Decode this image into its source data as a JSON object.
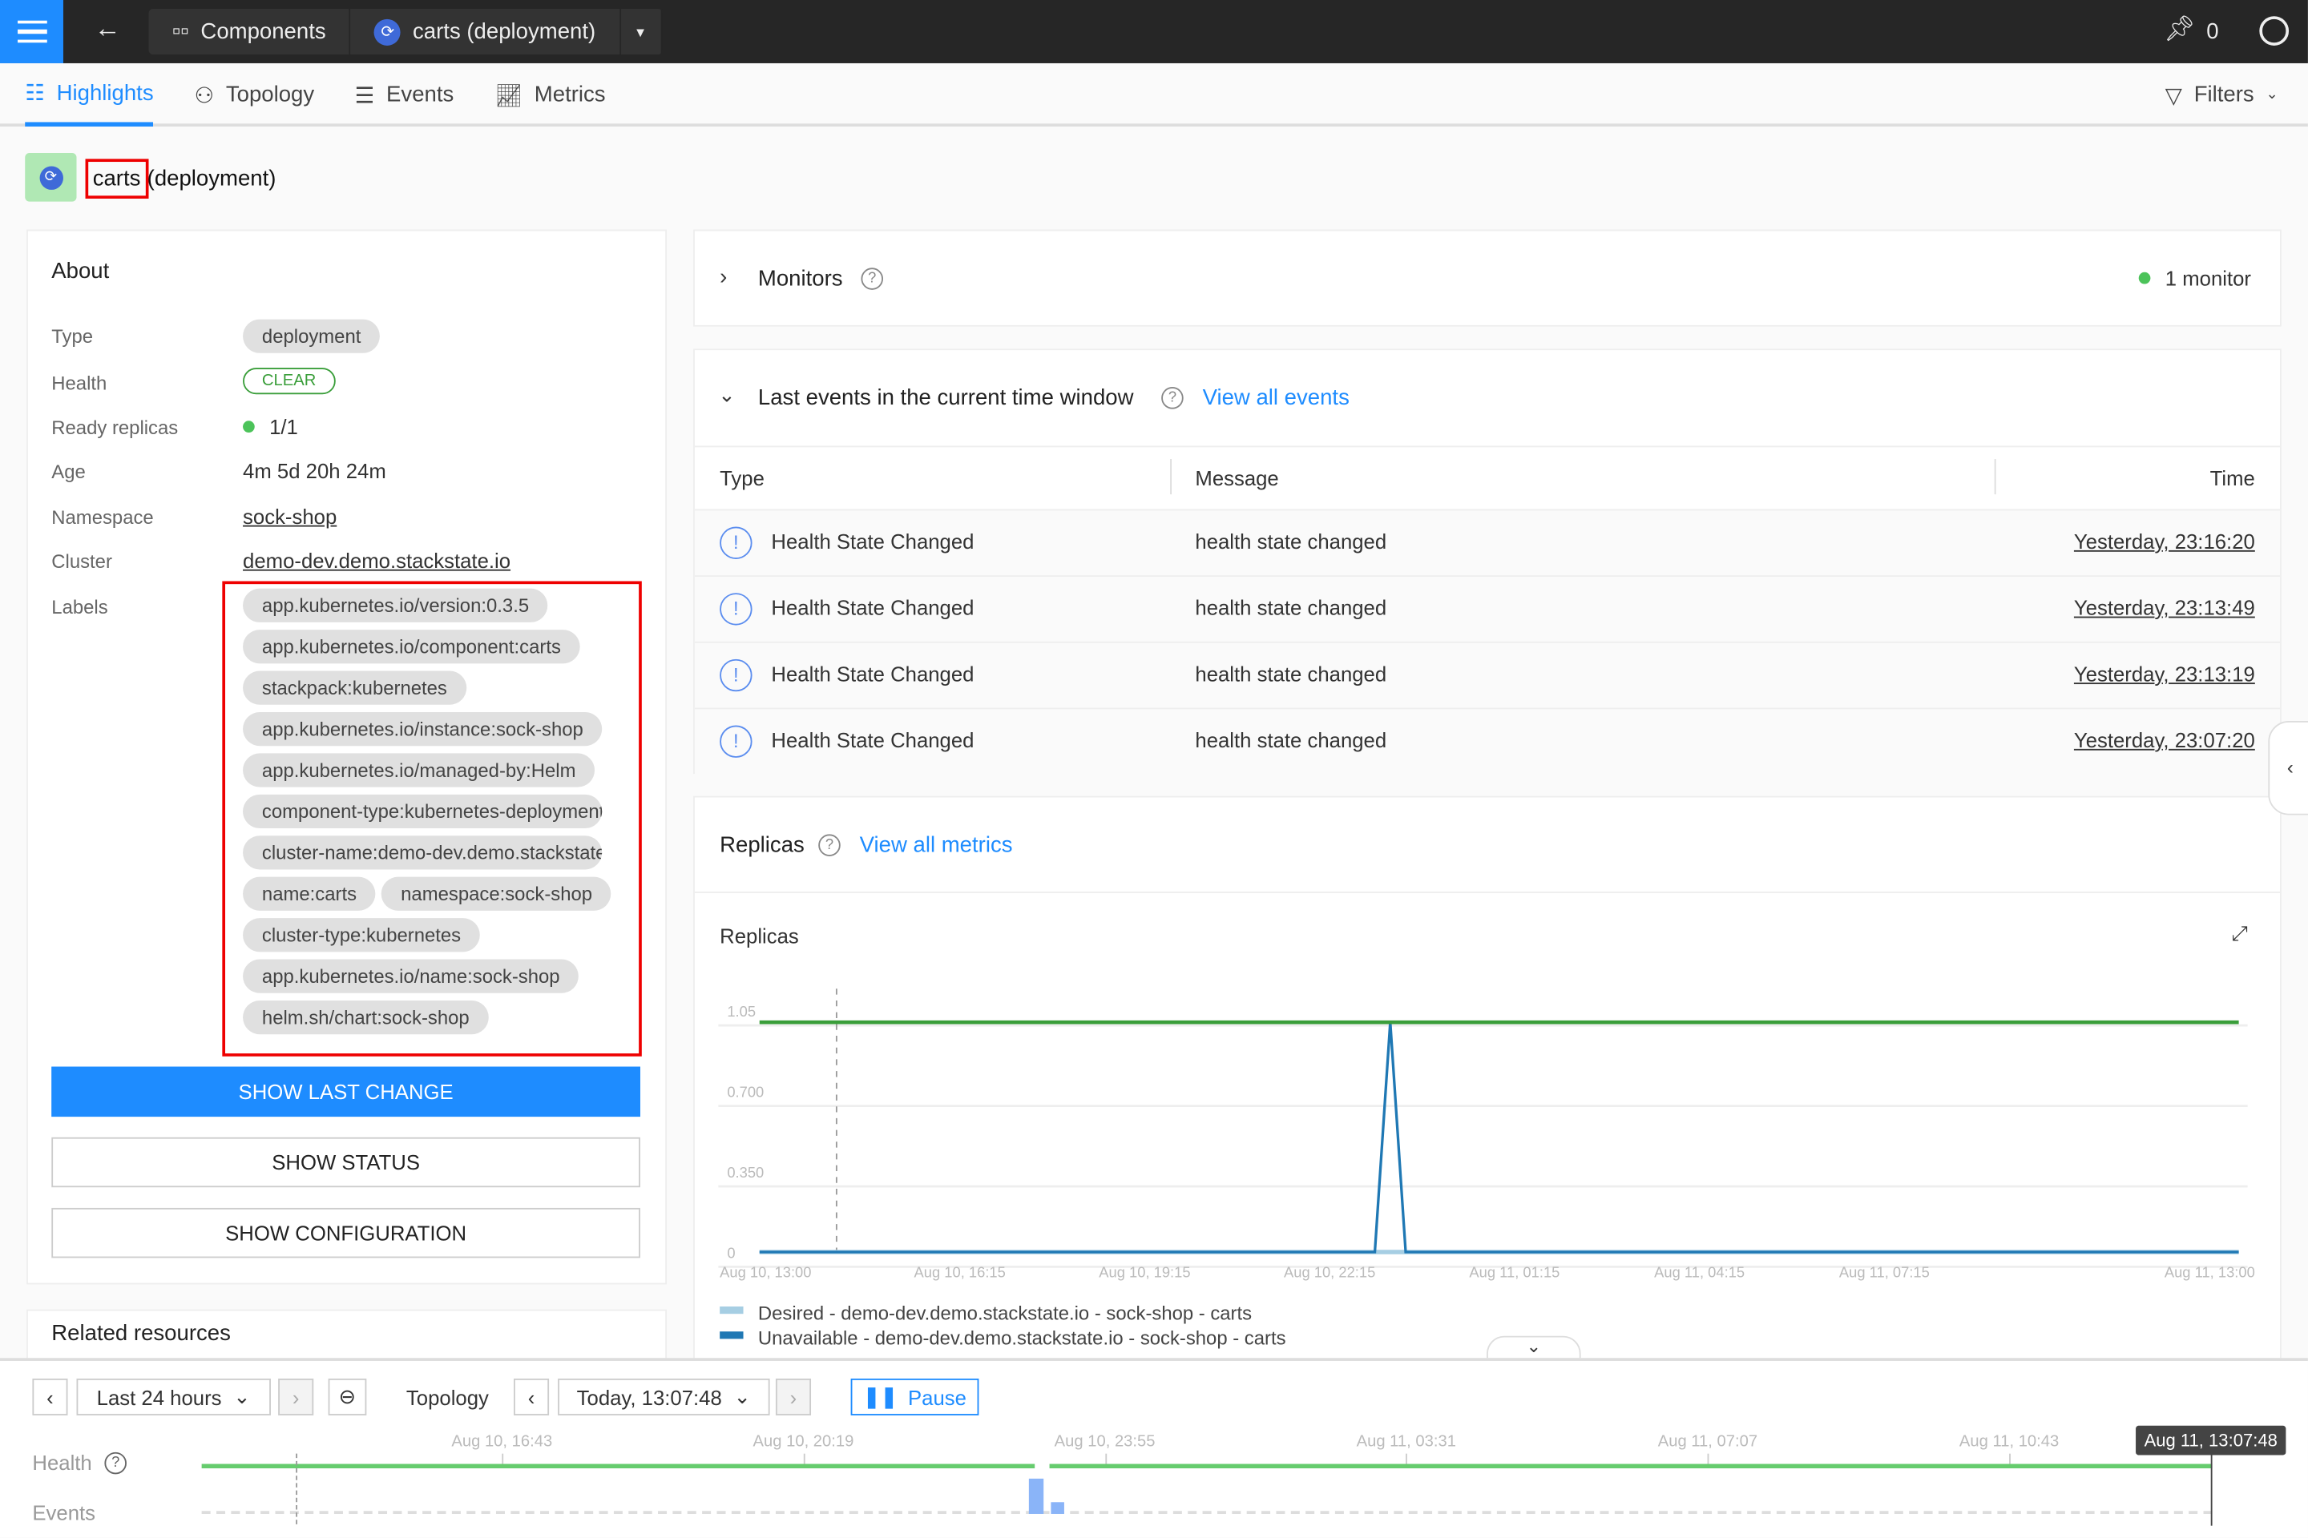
{
  "topbar": {
    "breadcrumb": [
      "Components",
      "carts (deployment)"
    ],
    "pin_count": "0"
  },
  "tabs": [
    {
      "label": "Highlights",
      "active": true
    },
    {
      "label": "Topology"
    },
    {
      "label": "Events"
    },
    {
      "label": "Metrics"
    }
  ],
  "filters_label": "Filters",
  "title": {
    "name": "carts",
    "kind": "(deployment)"
  },
  "about": {
    "heading": "About",
    "rows": [
      {
        "label": "Type",
        "value": "deployment"
      },
      {
        "label": "Health",
        "value": "CLEAR"
      },
      {
        "label": "Ready replicas",
        "value": "1/1"
      },
      {
        "label": "Age",
        "value": "4m 5d 20h 24m"
      },
      {
        "label": "Namespace",
        "value": "sock-shop"
      },
      {
        "label": "Cluster",
        "value": "demo-dev.demo.stackstate.io"
      },
      {
        "label": "Labels"
      }
    ],
    "labels": [
      "app.kubernetes.io/version:0.3.5",
      "app.kubernetes.io/component:carts",
      "stackpack:kubernetes",
      "app.kubernetes.io/instance:sock-shop",
      "app.kubernetes.io/managed-by:Helm",
      "component-type:kubernetes-deployment",
      "cluster-name:demo-dev.demo.stackstate.io",
      "name:carts",
      "namespace:sock-shop",
      "cluster-type:kubernetes",
      "app.kubernetes.io/name:sock-shop",
      "helm.sh/chart:sock-shop"
    ],
    "buttons": [
      "SHOW LAST CHANGE",
      "SHOW STATUS",
      "SHOW CONFIGURATION"
    ]
  },
  "related_heading": "Related resources",
  "monitors": {
    "title": "Monitors",
    "count": "1 monitor"
  },
  "events": {
    "title": "Last events in the current time window",
    "link": "View all events",
    "columns": [
      "Type",
      "Message",
      "Time"
    ],
    "rows": [
      {
        "type": "Health State Changed",
        "message": "health state changed",
        "time": "Yesterday, 23:16:20"
      },
      {
        "type": "Health State Changed",
        "message": "health state changed",
        "time": "Yesterday, 23:13:49"
      },
      {
        "type": "Health State Changed",
        "message": "health state changed",
        "time": "Yesterday, 23:13:19"
      },
      {
        "type": "Health State Changed",
        "message": "health state changed",
        "time": "Yesterday, 23:07:20"
      }
    ]
  },
  "replicas": {
    "title": "Replicas",
    "link": "View all metrics"
  },
  "chart_data": {
    "type": "line",
    "title": "Replicas",
    "ylim": [
      0,
      1.05
    ],
    "yticks": [
      "1.05",
      "0.700",
      "0.350",
      "0"
    ],
    "xlim": [
      "Aug 10, 13:00",
      "Aug 11, 13:00"
    ],
    "xticks": [
      "Aug 10, 13:00",
      "Aug 10, 16:15",
      "Aug 10, 19:15",
      "Aug 10, 22:15",
      "Aug 11, 01:15",
      "Aug 11, 04:15",
      "Aug 11, 07:15",
      "Aug 11, 13:00"
    ],
    "marker": "Aug 10, 14:15",
    "grid": true,
    "legend": "bottom",
    "series": [
      {
        "color": "#3a9e3a",
        "x": [
          "Aug 10, 13:00",
          "Aug 11, 13:00"
        ],
        "y": [
          1,
          1
        ]
      },
      {
        "name": "Desired - demo-dev.demo.stackstate.io - sock-shop - carts",
        "color": "#a6cee3",
        "x": [
          "Aug 10, 13:00",
          "Aug 11, 13:00"
        ],
        "y": [
          0,
          0
        ]
      },
      {
        "name": "Unavailable - demo-dev.demo.stackstate.io - sock-shop - carts",
        "color": "#1f78b4",
        "x": [
          "Aug 10, 13:00",
          "Aug 10, 22:59",
          "Aug 10, 23:14",
          "Aug 10, 23:29",
          "Aug 11, 13:00"
        ],
        "y": [
          0,
          0,
          1,
          0,
          0
        ]
      }
    ]
  },
  "bottom": {
    "range": "Last 24 hours",
    "mode": "Topology",
    "time": "Today, 13:07:48",
    "pause": "Pause",
    "health_label": "Health",
    "events_label": "Events",
    "ticks": [
      "Aug 10, 16:43",
      "Aug 10, 20:19",
      "Aug 10, 23:55",
      "Aug 11, 03:31",
      "Aug 11, 07:07",
      "Aug 11, 10:43"
    ],
    "current": "Aug 11, 13:07:48",
    "health_color": "#66cc6e",
    "event_color": "#8ab4f8"
  }
}
